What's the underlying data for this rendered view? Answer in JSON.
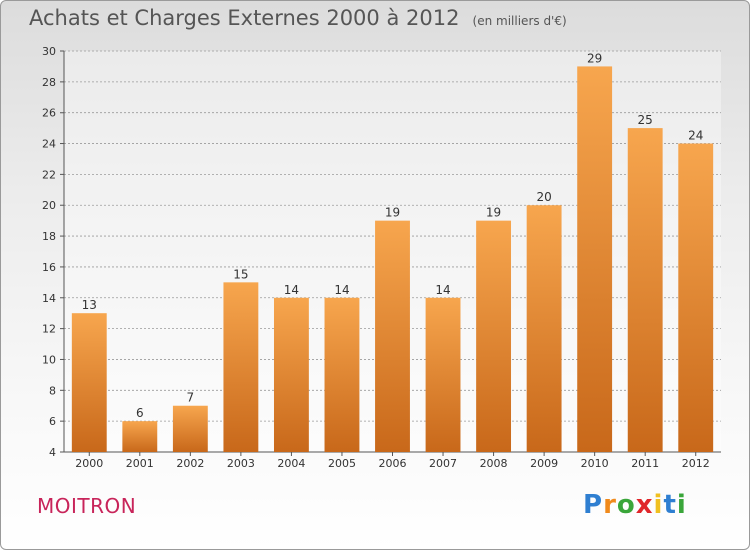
{
  "header": {
    "title": "Achats et Charges Externes 2000 à 2012",
    "unit": "(en milliers d'€)"
  },
  "footer": {
    "commune": "MOITRON",
    "logo_letters": [
      "P",
      "r",
      "o",
      "x",
      "i",
      "t",
      "i"
    ],
    "logo_colors": [
      "#2f7fd1",
      "#f08a1c",
      "#3aa63a",
      "#e0262a",
      "#f0c020",
      "#2f7fd1",
      "#3aa63a"
    ]
  },
  "colors": {
    "bar_top": "#f7a64e",
    "bar_bottom": "#c8681a",
    "grid": "#9a9a9a",
    "commune": "#c8245a"
  },
  "chart_data": {
    "type": "bar",
    "title": "Achats et Charges Externes 2000 à 2012",
    "subtitle": "(en milliers d'€)",
    "categories": [
      "2000",
      "2001",
      "2002",
      "2003",
      "2004",
      "2005",
      "2006",
      "2007",
      "2008",
      "2009",
      "2010",
      "2011",
      "2012"
    ],
    "values": [
      13,
      6,
      7,
      15,
      14,
      14,
      19,
      14,
      19,
      20,
      29,
      25,
      24
    ],
    "ylim": [
      4,
      30
    ],
    "yticks": [
      4,
      6,
      8,
      10,
      12,
      14,
      16,
      18,
      20,
      22,
      24,
      26,
      28,
      30
    ],
    "grid": "horizontal dashed",
    "data_labels": true
  }
}
